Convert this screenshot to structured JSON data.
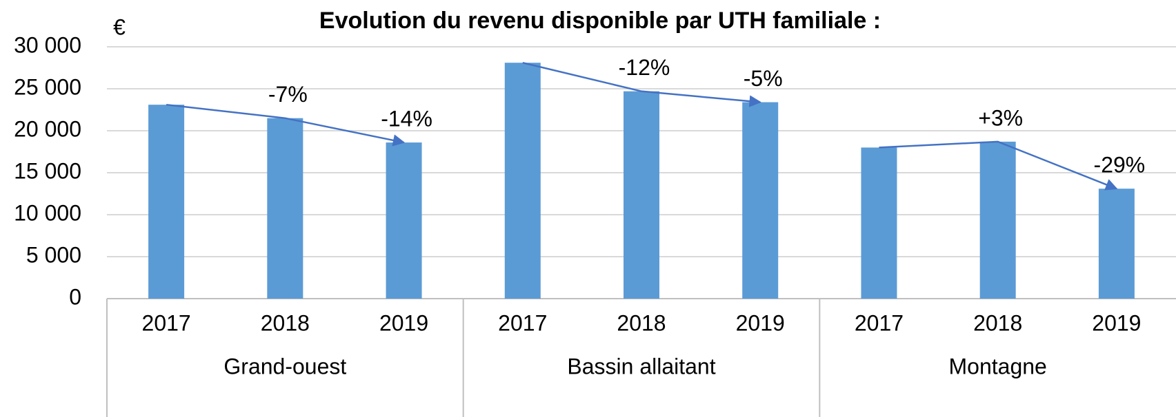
{
  "chart_data": {
    "type": "bar",
    "title": "Evolution du revenu disponible par UTH familiale :",
    "y_label": "€",
    "categories": [
      "2017",
      "2018",
      "2019",
      "2017",
      "2018",
      "2019",
      "2017",
      "2018",
      "2019"
    ],
    "groups": [
      "Grand-ouest",
      "Bassin allaitant",
      "Montagne"
    ],
    "values": [
      23100,
      21500,
      18600,
      28100,
      24700,
      23400,
      18000,
      18700,
      13100
    ],
    "annotations": [
      "-7%",
      "-14%",
      "-12%",
      "-5%",
      "+3%",
      "-29%"
    ],
    "color": "#5b9bd5",
    "line_color": "#4472c4",
    "ylim": [
      0,
      30000
    ],
    "yticks": [
      0,
      {
        "value": 5000,
        "label": "5 000"
      },
      {
        "value": 10000,
        "label": "10 000"
      },
      {
        "value": 15000,
        "label": "15 000"
      },
      {
        "value": 20000,
        "label": "20 000"
      },
      {
        "value": 25000,
        "label": "25 000"
      },
      {
        "value": 30000,
        "label": "30 000"
      }
    ],
    "grid": true
  }
}
